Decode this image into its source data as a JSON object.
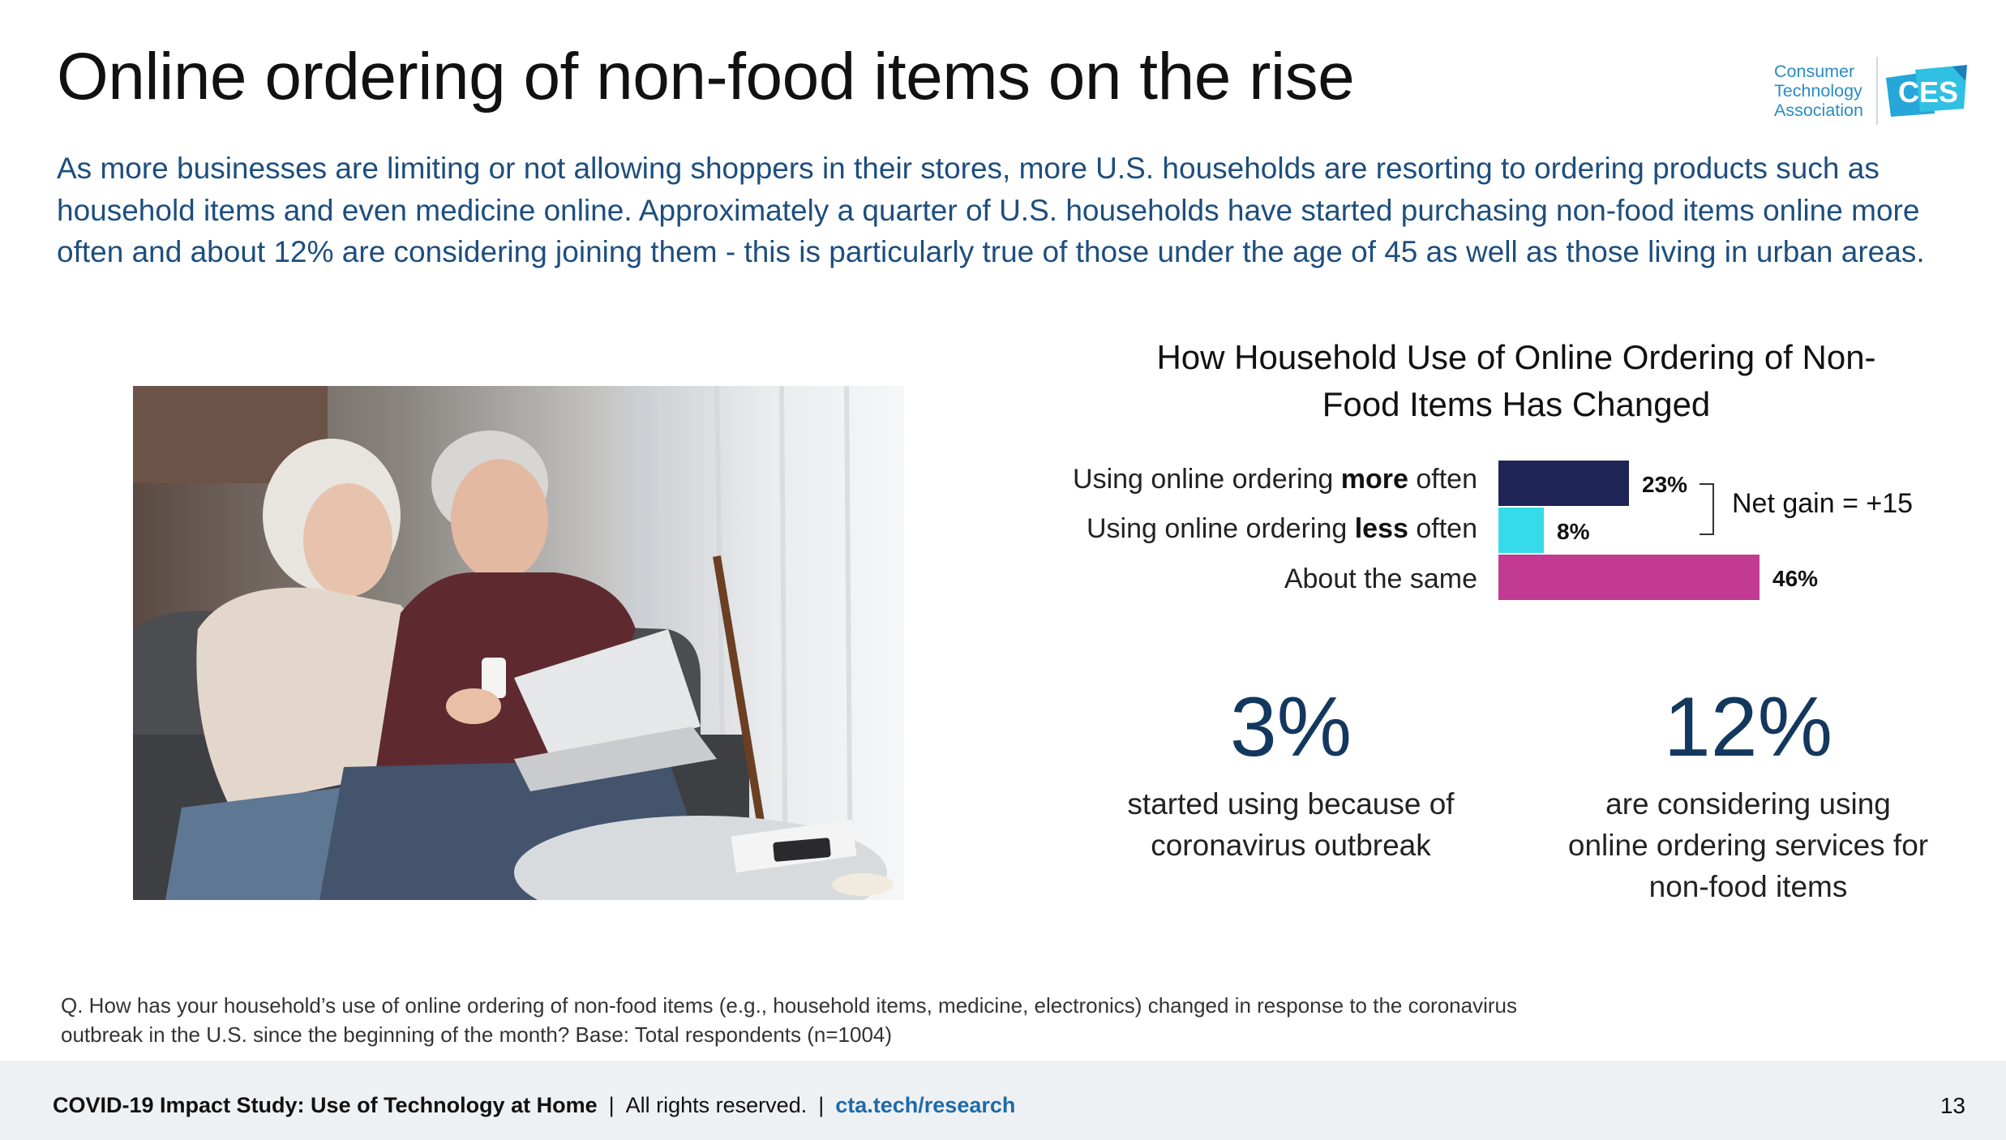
{
  "title": "Online ordering of non-food items on the rise",
  "intro": "As more businesses are limiting or not allowing shoppers in their stores, more U.S. households are resorting to ordering products such as household items and even medicine online. Approximately a quarter of U.S. households have started purchasing non-food items online more often and about 12% are considering joining them - this is particularly true of those under the age of 45 as well as those living in urban areas.",
  "logo": {
    "text_lines": [
      "Consumer",
      "Technology",
      "Association"
    ],
    "mark": "CES"
  },
  "chart_data": {
    "type": "bar",
    "orientation": "horizontal",
    "title": "How Household Use of Online Ordering of Non-Food Items Has Changed",
    "categories": [
      "Using online ordering more often",
      "Using online ordering less often",
      "About the same"
    ],
    "values": [
      23,
      8,
      46
    ],
    "value_labels": [
      "23%",
      "8%",
      "46%"
    ],
    "colors": [
      "#1f2457",
      "#35dbe8",
      "#c23a92"
    ],
    "xlim": [
      0,
      100
    ],
    "annotation": "Net gain = +15"
  },
  "chart_labels": {
    "more_pre": "Using online ordering ",
    "more_bold": "more",
    "more_post": " often",
    "less_pre": "Using online ordering ",
    "less_bold": "less",
    "less_post": " often",
    "same": "About the same"
  },
  "stats": [
    {
      "value": "3%",
      "desc_lines": [
        "started using because of",
        "coronavirus outbreak"
      ]
    },
    {
      "value": "12%",
      "desc_lines": [
        "are considering using",
        "online ordering services for",
        "non-food items"
      ]
    }
  ],
  "footnote": "Q. How has your household’s use of online ordering of non-food items (e.g., household items, medicine, electronics) changed in response to the coronavirus outbreak in the U.S. since the beginning of the month? Base: Total respondents (n=1004)",
  "footer": {
    "study": "COVID-19 Impact Study: Use of Technology at Home",
    "rights": "All rights reserved.",
    "link": "cta.tech/research",
    "separator": "|"
  },
  "page_number": "13",
  "colors": {
    "title": "#111111",
    "intro": "#1d4e7e",
    "stat": "#13385f",
    "footer_bg": "#eef1f4",
    "link": "#1e6aa8"
  }
}
